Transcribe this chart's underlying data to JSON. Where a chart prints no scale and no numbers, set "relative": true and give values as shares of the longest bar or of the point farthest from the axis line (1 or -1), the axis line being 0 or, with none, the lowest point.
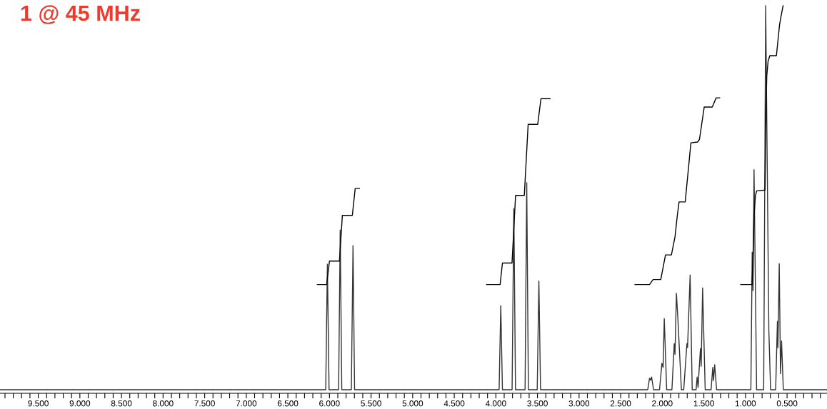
{
  "chart_data": {
    "type": "line",
    "title": "1 @ 45 MHz",
    "relative": true,
    "tick_labels": "x",
    "line_style": "solid",
    "xlim": [
      9.96,
      0.02
    ],
    "xticks": [
      {
        "value": 9.9,
        "label": null
      },
      {
        "value": 9.8,
        "label": null
      },
      {
        "value": 9.7,
        "label": null
      },
      {
        "value": 9.6,
        "label": null
      },
      {
        "value": 9.5,
        "label": "9.500"
      },
      {
        "value": 9.4,
        "label": null
      },
      {
        "value": 9.3,
        "label": null
      },
      {
        "value": 9.2,
        "label": null
      },
      {
        "value": 9.1,
        "label": null
      },
      {
        "value": 9.0,
        "label": "9.000"
      },
      {
        "value": 8.9,
        "label": null
      },
      {
        "value": 8.8,
        "label": null
      },
      {
        "value": 8.7,
        "label": null
      },
      {
        "value": 8.6,
        "label": null
      },
      {
        "value": 8.5,
        "label": "8.500"
      },
      {
        "value": 8.4,
        "label": null
      },
      {
        "value": 8.3,
        "label": null
      },
      {
        "value": 8.2,
        "label": null
      },
      {
        "value": 8.1,
        "label": null
      },
      {
        "value": 8.0,
        "label": "8.000"
      },
      {
        "value": 7.9,
        "label": null
      },
      {
        "value": 7.8,
        "label": null
      },
      {
        "value": 7.7,
        "label": null
      },
      {
        "value": 7.6,
        "label": null
      },
      {
        "value": 7.5,
        "label": "7.500"
      },
      {
        "value": 7.4,
        "label": null
      },
      {
        "value": 7.3,
        "label": null
      },
      {
        "value": 7.2,
        "label": null
      },
      {
        "value": 7.1,
        "label": null
      },
      {
        "value": 7.0,
        "label": "7.000"
      },
      {
        "value": 6.9,
        "label": null
      },
      {
        "value": 6.8,
        "label": null
      },
      {
        "value": 6.7,
        "label": null
      },
      {
        "value": 6.6,
        "label": null
      },
      {
        "value": 6.5,
        "label": "6.500"
      },
      {
        "value": 6.4,
        "label": null
      },
      {
        "value": 6.3,
        "label": null
      },
      {
        "value": 6.2,
        "label": null
      },
      {
        "value": 6.1,
        "label": null
      },
      {
        "value": 6.0,
        "label": "6.000"
      },
      {
        "value": 5.9,
        "label": null
      },
      {
        "value": 5.8,
        "label": null
      },
      {
        "value": 5.7,
        "label": null
      },
      {
        "value": 5.6,
        "label": null
      },
      {
        "value": 5.5,
        "label": "5.500"
      },
      {
        "value": 5.4,
        "label": null
      },
      {
        "value": 5.3,
        "label": null
      },
      {
        "value": 5.2,
        "label": null
      },
      {
        "value": 5.1,
        "label": null
      },
      {
        "value": 5.0,
        "label": "5.000"
      },
      {
        "value": 4.9,
        "label": null
      },
      {
        "value": 4.8,
        "label": null
      },
      {
        "value": 4.7,
        "label": null
      },
      {
        "value": 4.6,
        "label": null
      },
      {
        "value": 4.5,
        "label": "4.500"
      },
      {
        "value": 4.4,
        "label": null
      },
      {
        "value": 4.3,
        "label": null
      },
      {
        "value": 4.2,
        "label": null
      },
      {
        "value": 4.1,
        "label": null
      },
      {
        "value": 4.0,
        "label": "4.000"
      },
      {
        "value": 3.9,
        "label": null
      },
      {
        "value": 3.8,
        "label": null
      },
      {
        "value": 3.7,
        "label": null
      },
      {
        "value": 3.6,
        "label": null
      },
      {
        "value": 3.5,
        "label": "3.500"
      },
      {
        "value": 3.4,
        "label": null
      },
      {
        "value": 3.3,
        "label": null
      },
      {
        "value": 3.2,
        "label": null
      },
      {
        "value": 3.1,
        "label": null
      },
      {
        "value": 3.0,
        "label": "3.000"
      },
      {
        "value": 2.9,
        "label": null
      },
      {
        "value": 2.8,
        "label": null
      },
      {
        "value": 2.7,
        "label": null
      },
      {
        "value": 2.6,
        "label": null
      },
      {
        "value": 2.5,
        "label": "2.500"
      },
      {
        "value": 2.4,
        "label": null
      },
      {
        "value": 2.3,
        "label": null
      },
      {
        "value": 2.2,
        "label": null
      },
      {
        "value": 2.1,
        "label": null
      },
      {
        "value": 2.0,
        "label": "2.000"
      },
      {
        "value": 1.9,
        "label": null
      },
      {
        "value": 1.8,
        "label": null
      },
      {
        "value": 1.7,
        "label": null
      },
      {
        "value": 1.6,
        "label": null
      },
      {
        "value": 1.5,
        "label": "1.500"
      },
      {
        "value": 1.4,
        "label": null
      },
      {
        "value": 1.3,
        "label": null
      },
      {
        "value": 1.2,
        "label": null
      },
      {
        "value": 1.1,
        "label": null
      },
      {
        "value": 1.0,
        "label": "1.000"
      },
      {
        "value": 0.9,
        "label": null
      },
      {
        "value": 0.8,
        "label": null
      },
      {
        "value": 0.7,
        "label": null
      },
      {
        "value": 0.6,
        "label": null
      },
      {
        "value": 0.5,
        "label": "0.500"
      },
      {
        "value": 0.4,
        "label": null
      },
      {
        "value": 0.3,
        "label": null
      },
      {
        "value": 0.2,
        "label": null
      },
      {
        "value": 0.1,
        "label": null
      }
    ],
    "series": [
      {
        "color": "#333333",
        "x": [
          9.96,
          6.045,
          6.025,
          6.005,
          5.89,
          5.871,
          5.852,
          5.737,
          5.717,
          5.698,
          3.961,
          3.941,
          3.921,
          3.805,
          3.784,
          3.764,
          3.649,
          3.629,
          3.609,
          3.503,
          3.483,
          3.463,
          2.175,
          2.153,
          2.14,
          2.128,
          2.105,
          2.033,
          2.004,
          1.99,
          1.976,
          1.947,
          1.884,
          1.856,
          1.847,
          1.83,
          1.813,
          1.77,
          1.742,
          1.704,
          1.696,
          1.665,
          1.64,
          1.593,
          1.581,
          1.57,
          1.541,
          1.532,
          1.515,
          1.484,
          1.413,
          1.393,
          1.384,
          1.37,
          1.347,
          0.935,
          0.919,
          0.909,
          0.897,
          0.866,
          0.781,
          0.757,
          0.719,
          0.698,
          0.637,
          0.616,
          0.61,
          0.594,
          0.579,
          0.566,
          0.545,
          0.02
        ],
        "values": [
          0,
          0,
          0.327,
          0,
          0,
          0.416,
          0,
          0,
          0.375,
          0,
          0,
          0.219,
          0,
          0,
          0.472,
          0,
          0,
          0.539,
          0,
          0,
          0.283,
          0,
          0,
          0.03,
          0.025,
          0.033,
          0,
          0,
          0.069,
          0.058,
          0.185,
          0,
          0,
          0.12,
          0.092,
          0.251,
          0.188,
          0,
          0,
          0.12,
          0.11,
          0.299,
          0,
          0,
          0.033,
          0.006,
          0.107,
          0.061,
          0.265,
          0,
          0,
          0.058,
          0.024,
          0.065,
          0,
          0,
          0.358,
          0.258,
          0.573,
          0,
          0,
          1.0,
          0.155,
          0,
          0,
          0.178,
          0.109,
          0.328,
          0.042,
          0.127,
          0,
          0
        ]
      },
      {
        "color": "#000000",
        "x": [
          6.146,
          6.034,
          6.0,
          5.88,
          5.845,
          5.725,
          5.691,
          5.639
        ],
        "values": [
          0.274,
          0.274,
          0.335,
          0.335,
          0.454,
          0.454,
          0.524,
          0.524
        ]
      },
      {
        "color": "#000000",
        "x": [
          4.112,
          3.949,
          3.921,
          3.806,
          3.763,
          3.658,
          3.612,
          3.497,
          3.458,
          3.349
        ],
        "values": [
          0.274,
          0.274,
          0.33,
          0.33,
          0.506,
          0.506,
          0.691,
          0.691,
          0.758,
          0.758
        ]
      },
      {
        "color": "#000000",
        "x": [
          2.328,
          2.153,
          2.11,
          2.018,
          1.961,
          1.89,
          1.847,
          1.819,
          1.798,
          1.724,
          1.704,
          1.676,
          1.656,
          1.576,
          1.553,
          1.496,
          1.399,
          1.353,
          1.31
        ],
        "values": [
          0.274,
          0.274,
          0.287,
          0.287,
          0.351,
          0.351,
          0.398,
          0.454,
          0.489,
          0.489,
          0.535,
          0.597,
          0.643,
          0.645,
          0.652,
          0.736,
          0.736,
          0.76,
          0.76
        ]
      },
      {
        "color": "#000000",
        "x": [
          1.057,
          0.921,
          0.909,
          0.897,
          0.881,
          0.866,
          0.765,
          0.757,
          0.744,
          0.728,
          0.707,
          0.628,
          0.591,
          0.576,
          0.548
        ],
        "values": [
          0.274,
          0.274,
          0.351,
          0.451,
          0.504,
          0.518,
          0.52,
          0.683,
          0.816,
          0.856,
          0.87,
          0.87,
          0.949,
          0.968,
          1.0
        ]
      }
    ]
  }
}
